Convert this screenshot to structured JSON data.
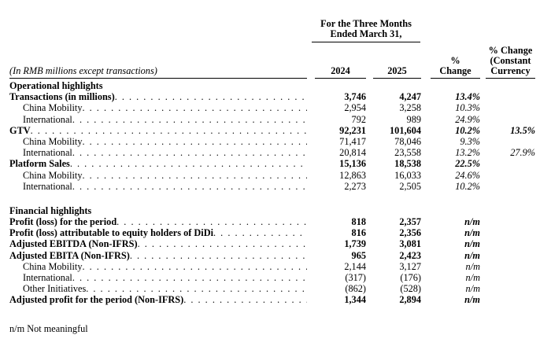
{
  "table": {
    "note": "(In RMB millions except transactions)",
    "period_header_line1": "For the Three Months",
    "period_header_line2": "Ended March 31,",
    "columns": {
      "y2024": "2024",
      "y2025": "2025",
      "pct_line1": "%",
      "pct_line2": "Change",
      "cc_line1": "% Change",
      "cc_line2": "(Constant",
      "cc_line3": "Currency"
    },
    "rows": [
      {
        "label": "Operational highlights"
      },
      {
        "label": "Transactions (in millions)",
        "v2024": "3,746",
        "v2025": "4,247",
        "chg": "13.4%"
      },
      {
        "label": "China Mobility",
        "v2024": "2,954",
        "v2025": "3,258",
        "chg": "10.3%"
      },
      {
        "label": "International",
        "v2024": "792",
        "v2025": "989",
        "chg": "24.9%"
      },
      {
        "label": "GTV",
        "v2024": "92,231",
        "v2025": "101,604",
        "chg": "10.2%",
        "cc": "13.5%"
      },
      {
        "label": "China Mobility",
        "v2024": "71,417",
        "v2025": "78,046",
        "chg": "9.3%"
      },
      {
        "label": "International",
        "v2024": "20,814",
        "v2025": "23,558",
        "chg": "13.2%",
        "cc": "27.9%"
      },
      {
        "label": "Platform Sales",
        "v2024": "15,136",
        "v2025": "18,538",
        "chg": "22.5%"
      },
      {
        "label": "China Mobility",
        "v2024": "12,863",
        "v2025": "16,033",
        "chg": "24.6%"
      },
      {
        "label": "International",
        "v2024": "2,273",
        "v2025": "2,505",
        "chg": "10.2%"
      },
      {
        "label": ""
      },
      {
        "label": "Financial highlights"
      },
      {
        "label": "Profit (loss) for the period",
        "v2024": "818",
        "v2025": "2,357",
        "chg": "n/m"
      },
      {
        "label": "Profit (loss) attributable to equity holders of DiDi",
        "v2024": "816",
        "v2025": "2,356",
        "chg": "n/m"
      },
      {
        "label": "Adjusted EBITDA (Non-IFRS)",
        "v2024": "1,739",
        "v2025": "3,081",
        "chg": "n/m"
      },
      {
        "label": "Adjusted EBITA (Non-IFRS)",
        "v2024": "965",
        "v2025": "2,423",
        "chg": "n/m"
      },
      {
        "label": "China Mobility",
        "v2024": "2,144",
        "v2025": "3,127",
        "chg": "n/m"
      },
      {
        "label": "International",
        "v2024": "(317)",
        "v2025": "(176)",
        "chg": "n/m"
      },
      {
        "label": "Other Initiatives",
        "v2024": "(862)",
        "v2025": "(528)",
        "chg": "n/m"
      },
      {
        "label": "Adjusted profit for the period (Non-IFRS)",
        "v2024": "1,344",
        "v2025": "2,894",
        "chg": "n/m"
      }
    ]
  },
  "footnote": "n/m Not meaningful"
}
